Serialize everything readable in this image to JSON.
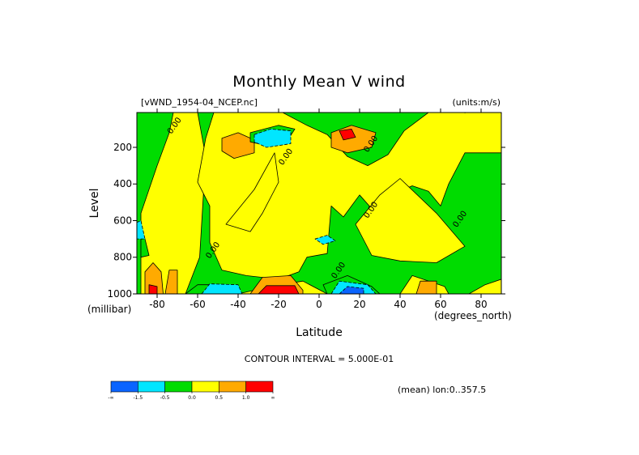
{
  "chart_data": {
    "type": "heatmap",
    "title": "Monthly Mean V wind",
    "dataset_label": "[vWND_1954-04_NCEP.nc]",
    "units_label": "(units:m/s)",
    "xlabel": "Latitude",
    "ylabel": "Level",
    "x_unit_label": "(degrees_north)",
    "y_unit_label": "(millibar)",
    "xlim": [
      -90,
      90
    ],
    "ylim": [
      1000,
      10
    ],
    "x_ticks": [
      -80,
      -60,
      -40,
      -20,
      0,
      20,
      40,
      60,
      80
    ],
    "x_tick_labels": [
      "-80",
      "-60",
      "-40",
      "-20",
      "0",
      "20",
      "40",
      "60",
      "80"
    ],
    "y_ticks": [
      200,
      400,
      600,
      800,
      1000
    ],
    "y_tick_labels": [
      "200",
      "400",
      "600",
      "800",
      "1000"
    ],
    "contour_interval_label": "CONTOUR INTERVAL = 5.000E-01",
    "mean_label": "(mean) lon:0..357.5",
    "colorbar": {
      "colors": [
        "#0a64ff",
        "#00e6ff",
        "#00dc00",
        "#ffff00",
        "#ffaa00",
        "#ff0000"
      ],
      "tick_labels": [
        "-∞",
        "-1.5",
        "-0.5",
        "0.0",
        "0.5",
        "1.0",
        "∞"
      ]
    },
    "field_layers": [
      {
        "level": "0.0..0.5",
        "color": "#ffff00",
        "polygons": [
          [
            [
              -72,
              10
            ],
            [
              -60,
              10
            ],
            [
              -56,
              250
            ],
            [
              -59,
              800
            ],
            [
              -66,
              1000
            ],
            [
              -88,
              1000
            ],
            [
              -88,
              560
            ],
            [
              -80,
              300
            ],
            [
              -74,
              120
            ]
          ],
          [
            [
              -52,
              10
            ],
            [
              -18,
              10
            ],
            [
              -6,
              80
            ],
            [
              4,
              130
            ],
            [
              14,
              250
            ],
            [
              24,
              300
            ],
            [
              34,
              240
            ],
            [
              42,
              110
            ],
            [
              54,
              10
            ],
            [
              90,
              10
            ],
            [
              90,
              230
            ],
            [
              72,
              230
            ],
            [
              64,
              400
            ],
            [
              60,
              520
            ],
            [
              54,
              440
            ],
            [
              46,
              410
            ],
            [
              36,
              460
            ],
            [
              28,
              560
            ],
            [
              20,
              460
            ],
            [
              12,
              580
            ],
            [
              6,
              520
            ],
            [
              4,
              780
            ],
            [
              -6,
              800
            ],
            [
              -10,
              880
            ],
            [
              -20,
              920
            ],
            [
              -36,
              900
            ],
            [
              -48,
              870
            ],
            [
              -54,
              720
            ],
            [
              -54,
              520
            ],
            [
              -60,
              390
            ],
            [
              -56,
              150
            ]
          ],
          [
            [
              -46,
              620
            ],
            [
              -32,
              430
            ],
            [
              -22,
              230
            ],
            [
              -20,
              390
            ],
            [
              -28,
              560
            ],
            [
              -34,
              660
            ]
          ],
          [
            [
              30,
              460
            ],
            [
              40,
              370
            ],
            [
              58,
              560
            ],
            [
              72,
              740
            ],
            [
              58,
              830
            ],
            [
              40,
              820
            ],
            [
              26,
              790
            ],
            [
              18,
              620
            ]
          ],
          [
            [
              -24,
              960
            ],
            [
              -8,
              930
            ],
            [
              4,
              1000
            ],
            [
              -40,
              1000
            ]
          ],
          [
            [
              40,
              1000
            ],
            [
              46,
              900
            ],
            [
              62,
              960
            ],
            [
              64,
              1000
            ]
          ],
          [
            [
              74,
              1000
            ],
            [
              82,
              950
            ],
            [
              90,
              920
            ],
            [
              90,
              1000
            ]
          ]
        ]
      },
      {
        "level": "0.5..1.0",
        "color": "#ffaa00",
        "polygons": [
          [
            [
              -48,
              150
            ],
            [
              -40,
              120
            ],
            [
              -32,
              160
            ],
            [
              -32,
              230
            ],
            [
              -42,
              260
            ],
            [
              -48,
              220
            ]
          ],
          [
            [
              6,
              120
            ],
            [
              16,
              80
            ],
            [
              28,
              120
            ],
            [
              26,
              200
            ],
            [
              14,
              230
            ],
            [
              6,
              200
            ]
          ],
          [
            [
              -34,
              1000
            ],
            [
              -28,
              910
            ],
            [
              -14,
              900
            ],
            [
              -8,
              980
            ],
            [
              -8,
              1000
            ]
          ],
          [
            [
              -86,
              1000
            ],
            [
              -86,
              880
            ],
            [
              -82,
              830
            ],
            [
              -78,
              880
            ],
            [
              -77,
              1000
            ]
          ],
          [
            [
              -76,
              1000
            ],
            [
              -74,
              870
            ],
            [
              -70,
              870
            ],
            [
              -70,
              1000
            ]
          ],
          [
            [
              48,
              1000
            ],
            [
              50,
              930
            ],
            [
              58,
              930
            ],
            [
              58,
              1000
            ]
          ]
        ]
      },
      {
        "level": "> 1.0",
        "color": "#ff0000",
        "polygons": [
          [
            [
              10,
              110
            ],
            [
              16,
              100
            ],
            [
              18,
              145
            ],
            [
              12,
              160
            ]
          ],
          [
            [
              -30,
              1000
            ],
            [
              -26,
              955
            ],
            [
              -12,
              955
            ],
            [
              -10,
              1000
            ]
          ],
          [
            [
              -84,
              1000
            ],
            [
              -84,
              950
            ],
            [
              -80,
              960
            ],
            [
              -80,
              1000
            ]
          ]
        ]
      },
      {
        "level": "-0.5..0.0 (positive bkg)",
        "color": "#00dc00",
        "polygons": [
          [
            [
              -34,
              120
            ],
            [
              -20,
              80
            ],
            [
              -12,
              100
            ],
            [
              -16,
              170
            ],
            [
              -26,
              190
            ],
            [
              -34,
              170
            ]
          ],
          [
            [
              2,
              950
            ],
            [
              14,
              900
            ],
            [
              26,
              960
            ],
            [
              30,
              1000
            ],
            [
              4,
              1000
            ]
          ],
          [
            [
              -66,
              1000
            ],
            [
              -60,
              950
            ],
            [
              -48,
              950
            ],
            [
              -44,
              1000
            ]
          ],
          [
            [
              -86,
              700
            ],
            [
              -88,
              660
            ],
            [
              -88,
              800
            ],
            [
              -84,
              790
            ]
          ]
        ]
      },
      {
        "level": "-1.5..-0.5",
        "color": "#00e6ff",
        "polygons": [
          [
            [
              -32,
              130
            ],
            [
              -24,
              100
            ],
            [
              -14,
              110
            ],
            [
              -14,
              180
            ],
            [
              -26,
              200
            ],
            [
              -32,
              170
            ]
          ],
          [
            [
              -58,
              1000
            ],
            [
              -54,
              945
            ],
            [
              -40,
              950
            ],
            [
              -38,
              1000
            ]
          ],
          [
            [
              6,
              1000
            ],
            [
              10,
              930
            ],
            [
              24,
              950
            ],
            [
              28,
              1000
            ]
          ],
          [
            [
              -2,
              700
            ],
            [
              4,
              680
            ],
            [
              8,
              710
            ],
            [
              2,
              730
            ]
          ],
          [
            [
              -90,
              610
            ],
            [
              -88,
              600
            ],
            [
              -86,
              700
            ],
            [
              -90,
              700
            ]
          ]
        ]
      },
      {
        "level": "< -1.5",
        "color": "#0a64ff",
        "polygons": [
          [
            [
              10,
              1000
            ],
            [
              14,
              960
            ],
            [
              22,
              970
            ],
            [
              22,
              1000
            ]
          ]
        ]
      }
    ],
    "contour_labels": [
      {
        "text": "0.00",
        "lat": 72,
        "lev": 20
      },
      {
        "text": "0.00",
        "lat": -73,
        "lev": 130
      },
      {
        "text": "0.00",
        "lat": 24,
        "lev": 230
      },
      {
        "text": "0.00",
        "lat": -18,
        "lev": 300
      },
      {
        "text": "0.00",
        "lat": 24,
        "lev": 590
      },
      {
        "text": "0.00",
        "lat": 68,
        "lev": 640
      },
      {
        "text": "0.00",
        "lat": -54,
        "lev": 810
      },
      {
        "text": "0.00",
        "lat": 8,
        "lev": 920
      }
    ]
  }
}
